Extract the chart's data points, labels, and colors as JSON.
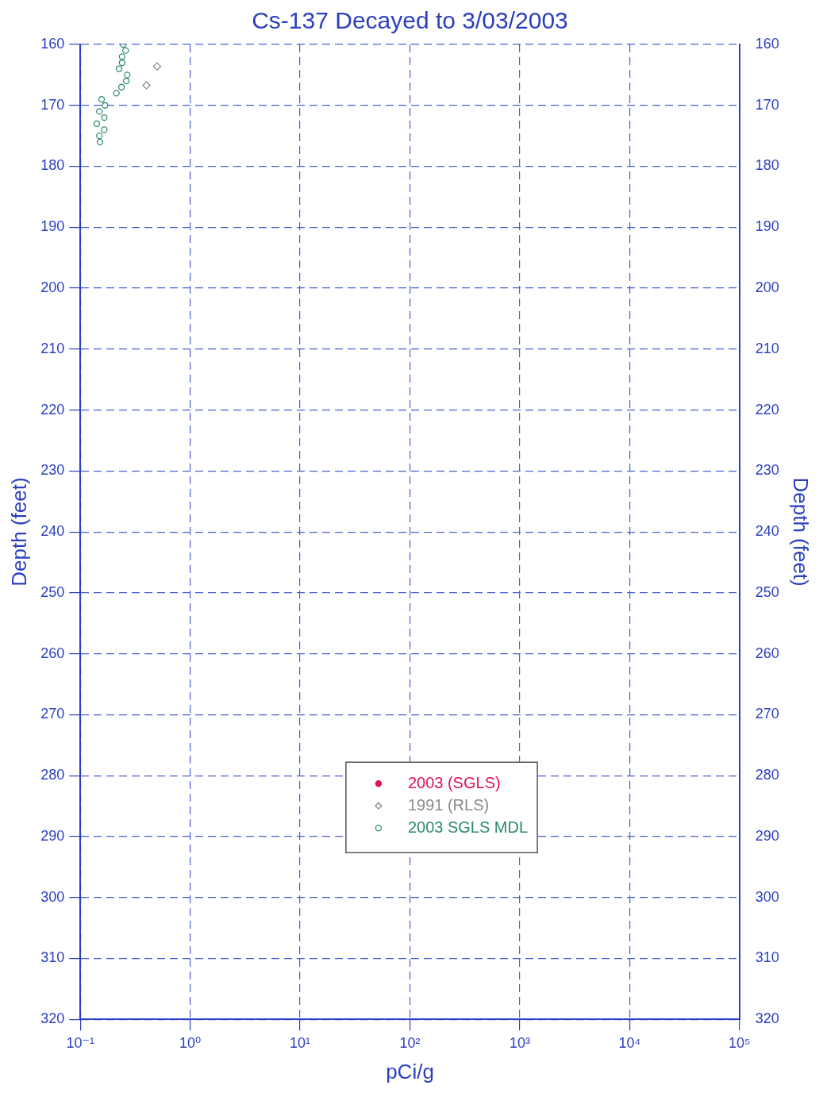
{
  "chart_data": {
    "type": "scatter",
    "title": "Cs-137 Decayed to 3/03/2003",
    "xlabel": "pCi/g",
    "ylabel": "Depth (feet)",
    "y2label": "Depth (feet)",
    "log": "x",
    "grid": true,
    "line_style": "dashed",
    "legend": "bottom",
    "xlim": [
      0.1,
      100000
    ],
    "xticks": [
      {
        "value": 0.1,
        "label": "10⁻¹"
      },
      {
        "value": 1,
        "label": "10⁰"
      },
      {
        "value": 10,
        "label": "10¹"
      },
      {
        "value": 100,
        "label": "10²"
      },
      {
        "value": 1000,
        "label": "10³"
      },
      {
        "value": 10000,
        "label": "10⁴"
      },
      {
        "value": 100000,
        "label": "10⁵"
      }
    ],
    "ylim": [
      320,
      160
    ],
    "yticks": [
      160,
      170,
      180,
      190,
      200,
      210,
      220,
      230,
      240,
      250,
      260,
      270,
      280,
      290,
      300,
      310,
      320
    ],
    "y2lim": [
      320,
      160
    ],
    "y2ticks": [
      160,
      170,
      180,
      190,
      200,
      210,
      220,
      230,
      240,
      250,
      260,
      270,
      280,
      290,
      300,
      310,
      320
    ],
    "series": [
      {
        "name": "2003 (SGLS)",
        "color": "#e0105a",
        "marker": "circle"
      },
      {
        "name": "1991 (RLS)",
        "color": "#8c8c8c",
        "marker": "diamond",
        "x": [
          0.5,
          0.4
        ],
        "values": [
          163.6,
          166.7
        ]
      },
      {
        "name": "2003 SGLS MDL",
        "color": "#2e8b6a",
        "marker": "circle",
        "x": [
          0.245,
          0.258,
          0.24,
          0.24,
          0.225,
          0.267,
          0.262,
          0.237,
          0.213,
          0.156,
          0.168,
          0.149,
          0.165,
          0.141,
          0.165,
          0.149,
          0.151
        ],
        "values": [
          160,
          161,
          162,
          163,
          164,
          165,
          166,
          167,
          168,
          169,
          170,
          171,
          172,
          173,
          174,
          175,
          176
        ]
      }
    ]
  }
}
